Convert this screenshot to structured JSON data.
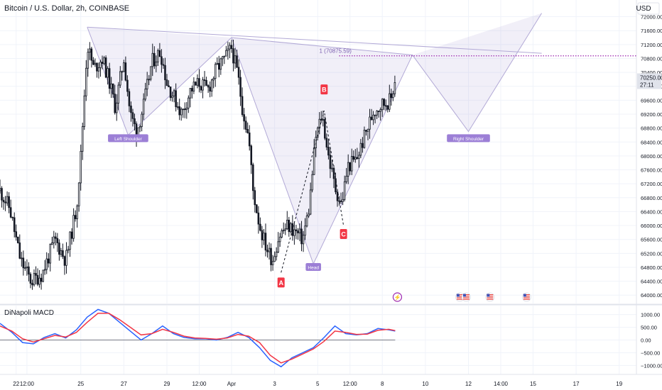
{
  "header": {
    "symbol": "Bitcoin / U.S. Dollar, 2h, COINBASE",
    "currency": "USD"
  },
  "indicator": {
    "name": "DiNapoli MACD"
  },
  "colors": {
    "up": "#26a69a",
    "down": "#ef5350",
    "candle": "#131722",
    "macd": "#2962ff",
    "signal": "#f23645",
    "pattern": "#b2a9d6",
    "label_bg": "#9c7fd6",
    "point_bg": "#f23645",
    "target_line": "#9c27b0",
    "grid": "#f0f3fa"
  },
  "chart_data": [
    {
      "type": "candlestick",
      "title": "Bitcoin / U.S. Dollar, 2h, COINBASE",
      "x_ticks": [
        "22",
        "12:00",
        "25",
        "27",
        "29",
        "12:00",
        "Apr",
        "3",
        "5",
        "12:00",
        "8",
        "10",
        "12",
        "14:00",
        "15",
        "17",
        "19"
      ],
      "x_tick_days": [
        0,
        0.5,
        3,
        5,
        7,
        8.5,
        10,
        12,
        14,
        15.5,
        17,
        19,
        21,
        22.5,
        24,
        26,
        28
      ],
      "x_range_days": [
        -0.75,
        28.8
      ],
      "y_ticks": [
        72000,
        71600,
        71200,
        70800,
        70400,
        70000,
        69600,
        69200,
        68800,
        68400,
        68000,
        67600,
        67200,
        66800,
        66400,
        66000,
        65600,
        65200,
        64800,
        64400,
        64000
      ],
      "ylim": [
        63760,
        72480
      ],
      "last_price": "70250.00",
      "countdown": "27:11",
      "price_path": [
        [
          -0.75,
          67000
        ],
        [
          -0.3,
          66500
        ],
        [
          0.2,
          65000
        ],
        [
          0.7,
          64400
        ],
        [
          1.2,
          64600
        ],
        [
          1.8,
          65600
        ],
        [
          2.3,
          65000
        ],
        [
          2.8,
          66500
        ],
        [
          3.0,
          68000
        ],
        [
          3.3,
          71200
        ],
        [
          3.6,
          70500
        ],
        [
          4.0,
          70800
        ],
        [
          4.3,
          70200
        ],
        [
          4.6,
          69400
        ],
        [
          5.0,
          70800
        ],
        [
          5.3,
          69200
        ],
        [
          5.6,
          68700
        ],
        [
          5.9,
          69400
        ],
        [
          6.3,
          70700
        ],
        [
          6.7,
          71000
        ],
        [
          7.0,
          70100
        ],
        [
          7.4,
          69600
        ],
        [
          7.7,
          69200
        ],
        [
          8.1,
          69900
        ],
        [
          8.5,
          70100
        ],
        [
          8.9,
          69900
        ],
        [
          9.3,
          70500
        ],
        [
          9.7,
          70800
        ],
        [
          10.0,
          71100
        ],
        [
          10.3,
          70300
        ],
        [
          10.5,
          69400
        ],
        [
          10.8,
          68500
        ],
        [
          11.0,
          67000
        ],
        [
          11.3,
          66000
        ],
        [
          11.6,
          65400
        ],
        [
          11.9,
          65000
        ],
        [
          12.2,
          65700
        ],
        [
          12.6,
          66000
        ],
        [
          13.0,
          65800
        ],
        [
          13.3,
          65600
        ],
        [
          13.6,
          66500
        ],
        [
          13.9,
          68500
        ],
        [
          14.2,
          69200
        ],
        [
          14.5,
          68000
        ],
        [
          14.8,
          67100
        ],
        [
          15.1,
          66600
        ],
        [
          15.4,
          67700
        ],
        [
          15.8,
          67900
        ],
        [
          16.2,
          68600
        ],
        [
          16.6,
          69300
        ],
        [
          17.0,
          69500
        ],
        [
          17.4,
          69600
        ],
        [
          17.6,
          70250
        ]
      ],
      "pattern": {
        "type": "head-and-shoulders",
        "points": [
          [
            3.3,
            71700
          ],
          [
            5.2,
            68600
          ],
          [
            10.0,
            71400
          ],
          [
            13.8,
            64900
          ],
          [
            18.4,
            70900
          ],
          [
            21.0,
            68700
          ],
          [
            24.4,
            72100
          ]
        ],
        "labels": [
          {
            "text": "Left Shoulder",
            "x": 5.2,
            "y": 68500
          },
          {
            "text": "Head",
            "x": 13.8,
            "y": 64800
          },
          {
            "text": "Right Shoulder",
            "x": 21.0,
            "y": 68500
          }
        ]
      },
      "abc": [
        {
          "label": "A",
          "x": 12.3,
          "y": 64650
        },
        {
          "label": "B",
          "x": 14.3,
          "y": 69300
        },
        {
          "label": "C",
          "x": 15.2,
          "y": 66000
        }
      ],
      "target": {
        "label": "1 (70875.59)",
        "value": 70875.59,
        "x_start": 14.8,
        "x_end": 28.8
      },
      "events": [
        {
          "kind": "lightning",
          "x": 17.7
        },
        {
          "kind": "us-flag",
          "x": 20.6
        },
        {
          "kind": "us-flag",
          "x": 20.9
        },
        {
          "kind": "us-flag",
          "x": 22.0
        },
        {
          "kind": "us-flag",
          "x": 23.7
        }
      ]
    },
    {
      "type": "line",
      "title": "DiNapoli MACD",
      "y_ticks": [
        1000,
        500,
        0,
        -500,
        -1000
      ],
      "y_tick_labels": [
        "1000.00",
        "500.00",
        "0.00",
        "−500.00",
        "−1000.00"
      ],
      "ylim": [
        -1350,
        1350
      ],
      "series": [
        {
          "x": [
            -0.75,
            -0.2,
            0.3,
            0.8,
            1.3,
            1.8,
            2.3,
            2.8,
            3.3,
            3.8,
            4.3,
            4.8,
            5.3,
            5.8,
            6.3,
            6.8,
            7.3,
            7.8,
            8.3,
            8.8,
            9.3,
            9.8,
            10.3,
            10.8,
            11.3,
            11.8,
            12.3,
            12.8,
            13.3,
            13.8,
            14.3,
            14.8,
            15.3,
            15.8,
            16.3,
            16.8,
            17.3,
            17.6
          ],
          "values": [
            650,
            300,
            -100,
            -150,
            100,
            250,
            80,
            400,
            900,
            1200,
            1050,
            700,
            350,
            0,
            250,
            550,
            250,
            100,
            50,
            50,
            0,
            100,
            300,
            100,
            -300,
            -800,
            -1050,
            -700,
            -500,
            -300,
            100,
            550,
            250,
            200,
            250,
            450,
            400,
            350
          ]
        },
        {
          "x": [
            -0.75,
            -0.2,
            0.3,
            0.8,
            1.3,
            1.8,
            2.3,
            2.8,
            3.3,
            3.8,
            4.3,
            4.8,
            5.3,
            5.8,
            6.3,
            6.8,
            7.3,
            7.8,
            8.3,
            8.8,
            9.3,
            9.8,
            10.3,
            10.8,
            11.3,
            11.8,
            12.3,
            12.8,
            13.3,
            13.8,
            14.3,
            14.8,
            15.3,
            15.8,
            16.3,
            16.8,
            17.3,
            17.6
          ],
          "values": [
            550,
            350,
            50,
            -80,
            50,
            180,
            120,
            300,
            700,
            1050,
            1050,
            800,
            500,
            200,
            250,
            420,
            300,
            150,
            80,
            60,
            30,
            80,
            220,
            150,
            -100,
            -600,
            -900,
            -750,
            -550,
            -350,
            -50,
            350,
            300,
            220,
            230,
            380,
            420,
            370
          ]
        }
      ]
    }
  ]
}
